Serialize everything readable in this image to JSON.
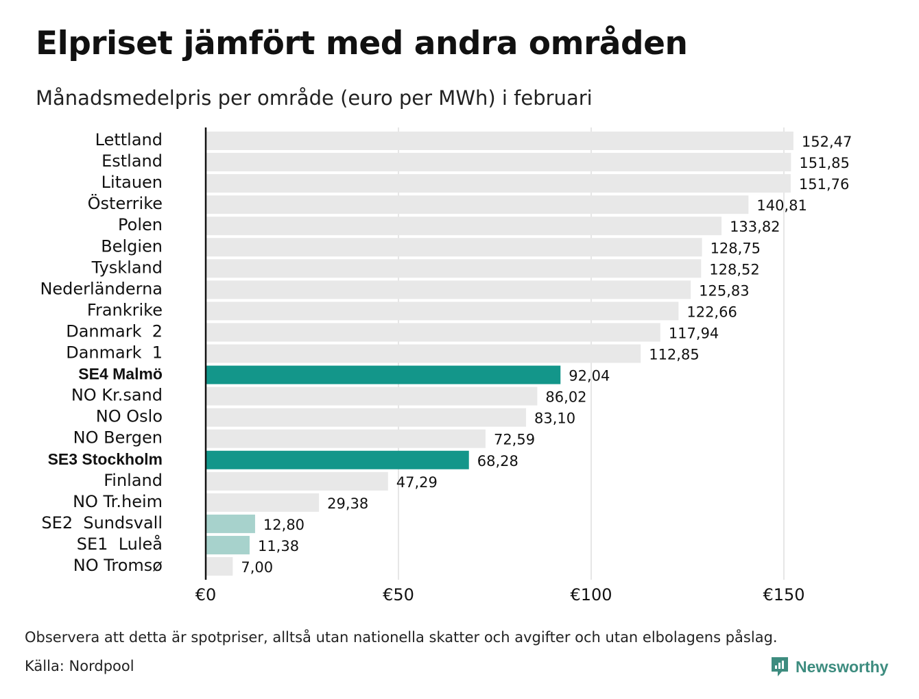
{
  "header": {
    "title": "Elpriset jämfört med andra områden",
    "subtitle": "Månadsmedelpris per område (euro per MWh) i februari"
  },
  "chart_data": {
    "type": "bar",
    "orientation": "horizontal",
    "categories": [
      "Lettland",
      "Estland",
      "Litauen",
      "Österrike",
      "Polen",
      "Belgien",
      "Tyskland",
      "Nederländerna",
      "Frankrike",
      "Danmark  2",
      "Danmark  1",
      "SE4 Malmö",
      "NO Kr.sand",
      "NO Oslo",
      "NO Bergen",
      "SE3 Stockholm",
      "Finland",
      "NO Tr.heim",
      "SE2  Sundsvall",
      "SE1  Luleå",
      "NO Tromsø"
    ],
    "values": [
      152.47,
      151.85,
      151.76,
      140.81,
      133.82,
      128.75,
      128.52,
      125.83,
      122.66,
      117.94,
      112.85,
      92.04,
      86.02,
      83.1,
      72.59,
      68.28,
      47.29,
      29.38,
      12.8,
      11.38,
      7.0
    ],
    "value_labels": [
      "152,47",
      "151,85",
      "151,76",
      "140,81",
      "133,82",
      "128,75",
      "128,52",
      "125,83",
      "122,66",
      "117,94",
      "112,85",
      "92,04",
      "86,02",
      "83,10",
      "72,59",
      "68,28",
      "47,29",
      "29,38",
      "12,80",
      "11,38",
      "7,00"
    ],
    "highlight": [
      null,
      null,
      null,
      null,
      null,
      null,
      null,
      null,
      null,
      null,
      null,
      "strong",
      null,
      null,
      null,
      "strong",
      null,
      null,
      "light",
      "light",
      null
    ],
    "bold_labels": [
      "SE4 Malmö",
      "SE3 Stockholm"
    ],
    "xlim": [
      0,
      160
    ],
    "xticks": [
      0,
      50,
      100,
      150
    ],
    "xtick_labels": [
      "€0",
      "€50",
      "€100",
      "€150"
    ],
    "grid": true,
    "colors": {
      "default": "#e8e8e8",
      "strong": "#13968a",
      "light": "#a7d2cc",
      "grid": "#cccccc",
      "axis": "#111111"
    }
  },
  "footer": {
    "note": "Observera att detta är spotpriser, alltså utan nationella skatter och avgifter och utan elbolagens påslag.",
    "source": "Källa: Nordpool",
    "brand": "Newsworthy",
    "brand_icon": "newsworthy-logo-icon",
    "brand_color": "#3d8c7f"
  }
}
